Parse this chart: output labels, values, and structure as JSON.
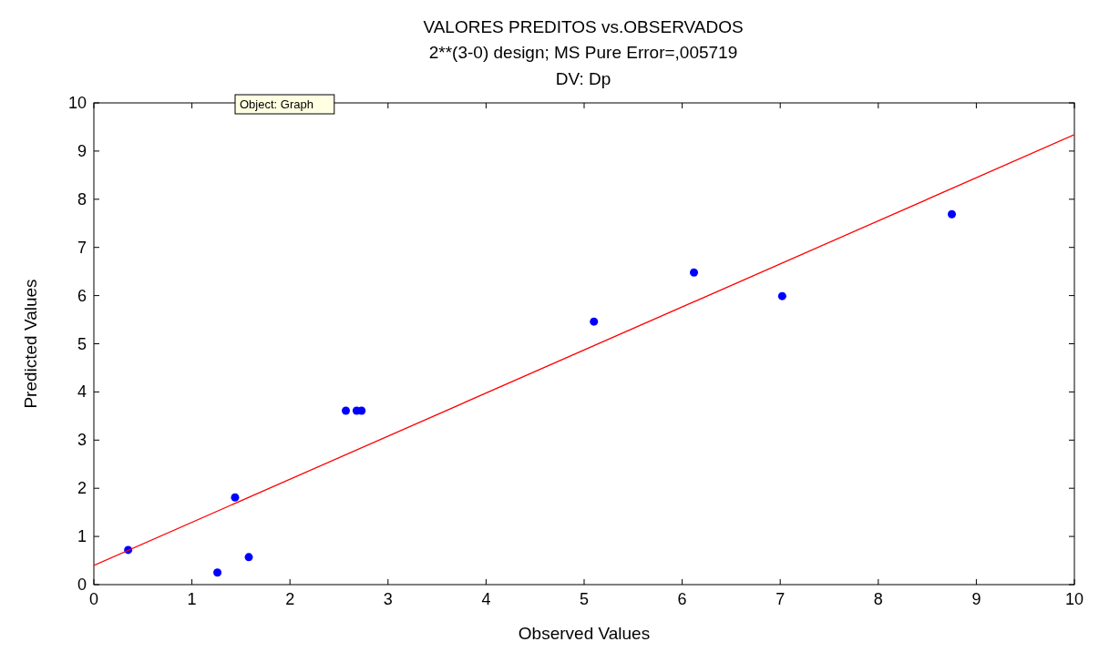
{
  "chart_data": {
    "type": "scatter",
    "title": "VALORES PREDITOS vs.OBSERVADOS",
    "subtitle": "2**(3-0) design; MS Pure Error=,005719\nDV: Dp",
    "xlabel": "Observed Values",
    "ylabel": "Predicted Values",
    "xlim": [
      0,
      10
    ],
    "ylim": [
      0,
      10
    ],
    "xticks": [
      0,
      1,
      2,
      3,
      4,
      5,
      6,
      7,
      8,
      9,
      10
    ],
    "yticks": [
      0,
      1,
      2,
      3,
      4,
      5,
      6,
      7,
      8,
      9,
      10
    ],
    "grid": false,
    "marker": "circle",
    "annotations": [
      "Object: Graph"
    ],
    "series": [
      {
        "color": "#0000ff",
        "x": [
          0.35,
          1.26,
          1.44,
          1.58,
          2.57,
          2.68,
          2.73,
          5.1,
          6.12,
          7.02,
          8.75
        ],
        "values": [
          0.72,
          0.25,
          1.81,
          0.57,
          3.61,
          3.61,
          3.61,
          5.46,
          6.48,
          5.99,
          7.69
        ]
      },
      {
        "type": "line",
        "color": "#ff0000",
        "x": [
          0,
          10
        ],
        "values": [
          0.4,
          9.34
        ],
        "marker": "none"
      }
    ]
  }
}
